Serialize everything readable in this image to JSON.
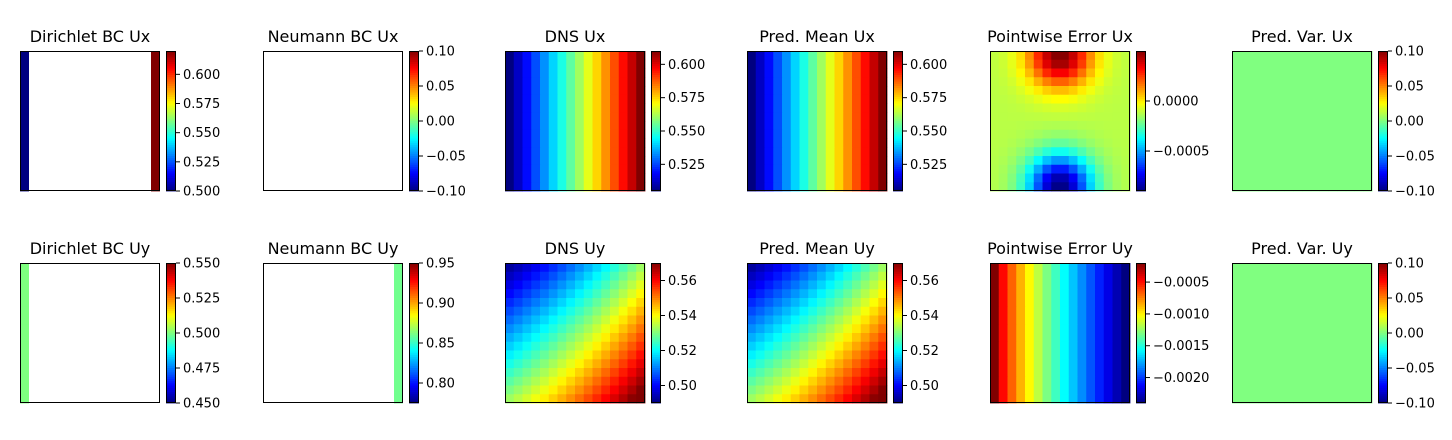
{
  "chart_data": [
    {
      "type": "heatmap",
      "title": "Dirichlet BC Ux",
      "colormap": "jet",
      "clim": [
        0.5,
        0.62
      ],
      "ticks": [
        0.5,
        0.525,
        0.55,
        0.575,
        0.6
      ],
      "tick_labels": [
        "0.500",
        "0.525",
        "0.550",
        "0.575",
        "0.600"
      ],
      "field": "left edge 0.500, right edge 0.620, interior blank"
    },
    {
      "type": "heatmap",
      "title": "Neumann BC Ux",
      "colormap": "jet",
      "clim": [
        -0.1,
        0.1
      ],
      "ticks": [
        -0.1,
        -0.05,
        0,
        0.05,
        0.1
      ],
      "tick_labels": [
        "−0.10",
        "−0.05",
        "0.00",
        "0.05",
        "0.10"
      ],
      "field": "all blank"
    },
    {
      "type": "heatmap",
      "title": "DNS Ux",
      "colormap": "jet",
      "clim": [
        0.505,
        0.61
      ],
      "ticks": [
        0.525,
        0.55,
        0.575,
        0.6
      ],
      "tick_labels": [
        "0.525",
        "0.550",
        "0.575",
        "0.600"
      ],
      "field": "increases left (0.505) to right (0.610), 16x16 grid"
    },
    {
      "type": "heatmap",
      "title": "Pred. Mean Ux",
      "colormap": "jet",
      "clim": [
        0.505,
        0.61
      ],
      "ticks": [
        0.525,
        0.55,
        0.575,
        0.6
      ],
      "tick_labels": [
        "0.525",
        "0.550",
        "0.575",
        "0.600"
      ],
      "field": "increases left (0.505) to right (0.610), 16x16 grid"
    },
    {
      "type": "heatmap",
      "title": "Pointwise Error Ux",
      "colormap": "jet",
      "clim": [
        -0.0009,
        0.0005
      ],
      "ticks": [
        -0.0005,
        0
      ],
      "tick_labels": [
        "−0.0005",
        "0.0000"
      ],
      "field": "max at top-center, min at bottom-center"
    },
    {
      "type": "heatmap",
      "title": "Pred. Var. Ux",
      "colormap": "jet",
      "clim": [
        -0.1,
        0.1
      ],
      "ticks": [
        -0.1,
        -0.05,
        0,
        0.05,
        0.1
      ],
      "tick_labels": [
        "−0.10",
        "−0.05",
        "0.00",
        "0.05",
        "0.10"
      ],
      "field": "uniform 0.00"
    },
    {
      "type": "heatmap",
      "title": "Dirichlet BC Uy",
      "colormap": "jet",
      "clim": [
        0.45,
        0.55
      ],
      "ticks": [
        0.45,
        0.475,
        0.5,
        0.525,
        0.55
      ],
      "tick_labels": [
        "0.450",
        "0.475",
        "0.500",
        "0.525",
        "0.550"
      ],
      "field": "left edge 0.500, interior blank"
    },
    {
      "type": "heatmap",
      "title": "Neumann BC Uy",
      "colormap": "jet",
      "clim": [
        0.775,
        0.95
      ],
      "ticks": [
        0.8,
        0.85,
        0.9,
        0.95
      ],
      "tick_labels": [
        "0.80",
        "0.85",
        "0.90",
        "0.95"
      ],
      "field": "right edge ~0.86, interior blank"
    },
    {
      "type": "heatmap",
      "title": "DNS Uy",
      "colormap": "jet",
      "clim": [
        0.49,
        0.57
      ],
      "ticks": [
        0.5,
        0.52,
        0.54,
        0.56
      ],
      "tick_labels": [
        "0.50",
        "0.52",
        "0.54",
        "0.56"
      ],
      "field": "diagonal gradient, low top-left (0.49) to high bottom-right (0.57)"
    },
    {
      "type": "heatmap",
      "title": "Pred. Mean Uy",
      "colormap": "jet",
      "clim": [
        0.49,
        0.57
      ],
      "ticks": [
        0.5,
        0.52,
        0.54,
        0.56
      ],
      "tick_labels": [
        "0.50",
        "0.52",
        "0.54",
        "0.56"
      ],
      "field": "diagonal gradient, low top-left (0.49) to high bottom-right (0.57)"
    },
    {
      "type": "heatmap",
      "title": "Pointwise Error Uy",
      "colormap": "jet",
      "clim": [
        -0.0024,
        -0.0002
      ],
      "ticks": [
        -0.002,
        -0.0015,
        -0.001,
        -0.0005
      ],
      "tick_labels": [
        "−0.0020",
        "−0.0015",
        "−0.0010",
        "−0.0005"
      ],
      "field": "high on left (-0.0002) decreasing to right (-0.0024)"
    },
    {
      "type": "heatmap",
      "title": "Pred. Var. Uy",
      "colormap": "jet",
      "clim": [
        -0.1,
        0.1
      ],
      "ticks": [
        -0.1,
        -0.05,
        0,
        0.05,
        0.1
      ],
      "tick_labels": [
        "−0.10",
        "−0.05",
        "0.00",
        "0.05",
        "0.10"
      ],
      "field": "uniform 0.00"
    }
  ]
}
